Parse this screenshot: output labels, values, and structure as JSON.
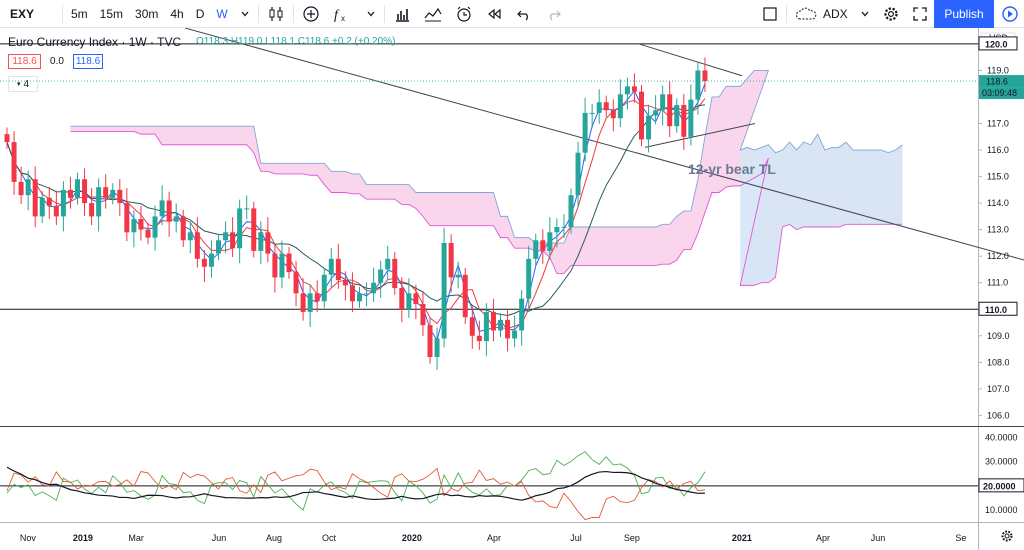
{
  "toolbar": {
    "symbol": "EXY",
    "intervals": [
      "5m",
      "15m",
      "30m",
      "4h"
    ],
    "active_interval": "W",
    "indicator_label": "ADX",
    "publish_label": "Publish"
  },
  "legend": {
    "title": "Euro Currency Index · 1W · TVC",
    "ohlc": "O118.3 H119.0 L118.1 C118.6 +0.2 (+0.20%)",
    "badge_a": "118.6",
    "badge_b": "0.0",
    "badge_c": "118.6",
    "study_count": "4"
  },
  "colors": {
    "up": "#26a69a",
    "down": "#f23645",
    "cloud": "#f8c8e6",
    "cloud_blue": "#d5e6f5",
    "ma_fast": "#2962ff",
    "ma_mid": "#f23645",
    "ma_slow": "#285a5a",
    "accent": "#2962ff"
  },
  "chart_data": [
    {
      "type": "candlestick",
      "title": "Euro Currency Index · 1W · TVC",
      "currency": "USD",
      "ylim": [
        105.6,
        120.6
      ],
      "y_ticks": [
        "120.0",
        "119.0",
        "117.0",
        "116.0",
        "115.0",
        "114.0",
        "113.0",
        "112.0",
        "111.0",
        "109.0",
        "108.0",
        "107.0",
        "106.0"
      ],
      "last_price": "118.6",
      "countdown": "03:09:48",
      "x_ticks": [
        {
          "label": "Nov",
          "date": "2018-11-01",
          "bold": false
        },
        {
          "label": "2019",
          "date": "2019-01-01",
          "bold": true
        },
        {
          "label": "Mar",
          "date": "2019-03-01",
          "bold": false
        },
        {
          "label": "Jun",
          "date": "2019-06-01",
          "bold": false
        },
        {
          "label": "Aug",
          "date": "2019-08-01",
          "bold": false
        },
        {
          "label": "Oct",
          "date": "2019-10-01",
          "bold": false
        },
        {
          "label": "2020",
          "date": "2020-01-01",
          "bold": true
        },
        {
          "label": "Apr",
          "date": "2020-04-01",
          "bold": false
        },
        {
          "label": "Jul",
          "date": "2020-07-01",
          "bold": false
        },
        {
          "label": "Sep",
          "date": "2020-09-01",
          "bold": false
        },
        {
          "label": "2021",
          "date": "2021-01-01",
          "bold": true
        },
        {
          "label": "Apr",
          "date": "2021-04-01",
          "bold": false
        },
        {
          "label": "Jun",
          "date": "2021-06-01",
          "bold": false
        },
        {
          "label": "Se",
          "date": "2021-09-01",
          "bold": false
        }
      ],
      "closes": [
        116.3,
        114.8,
        114.3,
        114.9,
        113.5,
        114.2,
        113.9,
        113.5,
        114.5,
        114.2,
        114.9,
        114.0,
        113.5,
        114.6,
        114.2,
        114.5,
        114.0,
        112.9,
        113.4,
        113.0,
        112.7,
        113.5,
        114.1,
        113.3,
        113.5,
        112.6,
        112.9,
        111.9,
        111.6,
        112.1,
        112.6,
        112.9,
        112.3,
        113.8,
        113.8,
        112.2,
        112.9,
        112.1,
        111.2,
        112.1,
        111.4,
        110.6,
        109.9,
        110.6,
        110.3,
        111.3,
        111.9,
        111.1,
        110.9,
        110.3,
        110.6,
        110.6,
        111.0,
        111.5,
        111.9,
        110.8,
        110.0,
        110.6,
        110.2,
        109.4,
        108.2,
        108.9,
        112.5,
        111.2,
        111.3,
        109.7,
        109.0,
        108.8,
        109.9,
        109.2,
        109.6,
        108.9,
        109.2,
        110.4,
        111.9,
        112.6,
        112.2,
        112.9,
        113.1,
        113.1,
        114.3,
        115.9,
        117.4,
        117.4,
        117.8,
        117.5,
        117.2,
        118.1,
        118.4,
        118.2,
        116.4,
        117.3,
        117.5,
        118.1,
        116.9,
        117.7,
        116.5,
        117.9,
        119.0,
        118.6
      ],
      "resistance_level": "120.0",
      "support_level": "110.0",
      "annotation": "12-yr bear TL",
      "cloud_upper_projection": [
        116.0,
        116.1,
        116.0,
        116.1,
        116.2,
        115.9,
        116.0,
        116.3,
        116.0,
        116.3,
        116.2,
        116.6,
        116.0,
        116.1,
        116.1,
        116.3,
        116.0,
        116.0,
        116.0,
        116.0,
        116.0,
        115.9,
        116.0,
        116.2
      ],
      "cloud_lower_projection": [
        110.9,
        110.9,
        110.9,
        111.0,
        111.0,
        111.2,
        113.1,
        113.2,
        113.0,
        113.1,
        113.1,
        113.1,
        113.1,
        113.1,
        113.1,
        113.2,
        113.2,
        113.2,
        113.2,
        113.2,
        113.2,
        113.2,
        113.2,
        113.2
      ]
    },
    {
      "type": "line",
      "title": "ADX",
      "ylim": [
        5,
        44
      ],
      "y_ticks": [
        "40.0000",
        "30.0000",
        "10.0000"
      ],
      "level": "20.0000"
    }
  ]
}
